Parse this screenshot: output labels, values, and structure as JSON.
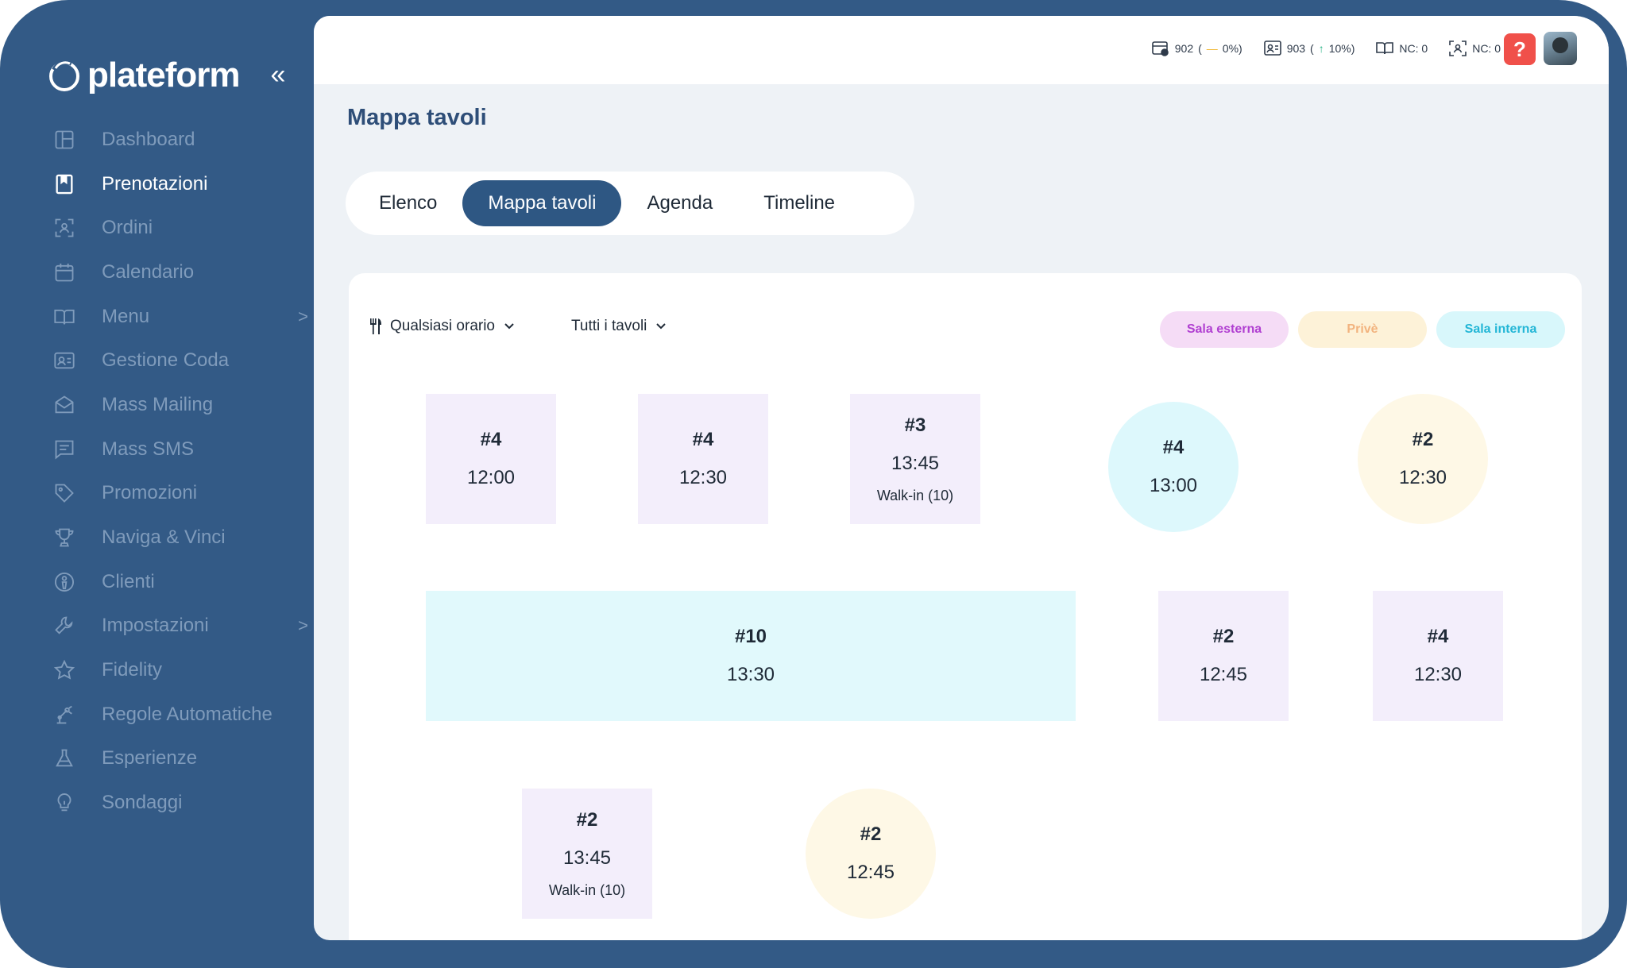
{
  "app": {
    "logo_text": "plateform"
  },
  "sidebar": {
    "items": [
      {
        "label": "Dashboard",
        "icon": "layout-icon",
        "active": false,
        "chevron": ""
      },
      {
        "label": "Prenotazioni",
        "icon": "bookmark-icon",
        "active": true,
        "chevron": ""
      },
      {
        "label": "Ordini",
        "icon": "scan-icon",
        "active": false,
        "chevron": ""
      },
      {
        "label": "Calendario",
        "icon": "calendar-icon",
        "active": false,
        "chevron": ""
      },
      {
        "label": "Menu",
        "icon": "book-open-icon",
        "active": false,
        "chevron": ">"
      },
      {
        "label": "Gestione Coda",
        "icon": "id-card-icon",
        "active": false,
        "chevron": ""
      },
      {
        "label": "Mass Mailing",
        "icon": "mail-icon",
        "active": false,
        "chevron": ""
      },
      {
        "label": "Mass SMS",
        "icon": "message-icon",
        "active": false,
        "chevron": ""
      },
      {
        "label": "Promozioni",
        "icon": "tag-icon",
        "active": false,
        "chevron": ""
      },
      {
        "label": "Naviga & Vinci",
        "icon": "trophy-icon",
        "active": false,
        "chevron": ""
      },
      {
        "label": "Clienti",
        "icon": "user-circle-icon",
        "active": false,
        "chevron": ""
      },
      {
        "label": "Impostazioni",
        "icon": "wrench-icon",
        "active": false,
        "chevron": ">"
      },
      {
        "label": "Fidelity",
        "icon": "star-icon",
        "active": false,
        "chevron": ""
      },
      {
        "label": "Regole Automatiche",
        "icon": "robot-arm-icon",
        "active": false,
        "chevron": ""
      },
      {
        "label": "Esperienze",
        "icon": "flask-icon",
        "active": false,
        "chevron": ""
      },
      {
        "label": "Sondaggi",
        "icon": "lightbulb-icon",
        "active": false,
        "chevron": ""
      }
    ]
  },
  "topbar": {
    "stats": [
      {
        "icon": "reservation-stat-icon",
        "value": "902",
        "open": " (",
        "delta": "—",
        "pct": "0%)",
        "delta_color": "#f0b429"
      },
      {
        "icon": "queue-stat-icon",
        "value": "903",
        "open": " (",
        "delta": "↑",
        "pct": "10%)",
        "delta_color": "#2fb58a"
      },
      {
        "icon": "menu-stat-icon",
        "value": "NC: 0",
        "open": "",
        "delta": "",
        "pct": "",
        "delta_color": ""
      },
      {
        "icon": "scan-stat-icon",
        "value": "NC: 0",
        "open": "",
        "delta": "",
        "pct": "",
        "delta_color": ""
      }
    ],
    "help_label": "?"
  },
  "page": {
    "title": "Mappa tavoli"
  },
  "tabs": [
    {
      "label": "Elenco",
      "active": false
    },
    {
      "label": "Mappa tavoli",
      "active": true
    },
    {
      "label": "Agenda",
      "active": false
    },
    {
      "label": "Timeline",
      "active": false
    }
  ],
  "filters": {
    "time": "Qualsiasi orario",
    "tables": "Tutti i tavoli"
  },
  "rooms": [
    {
      "label": "Sala esterna",
      "bg": "#f5dcf6",
      "fg": "#b03fd1"
    },
    {
      "label": "Privè",
      "bg": "#fdf2d8",
      "fg": "#f2b37e"
    },
    {
      "label": "Sala interna",
      "bg": "#d8f7fb",
      "fg": "#23b6d6"
    }
  ],
  "tables": [
    {
      "num": "#4",
      "time": "12:00",
      "sub": ""
    },
    {
      "num": "#4",
      "time": "12:30",
      "sub": ""
    },
    {
      "num": "#3",
      "time": "13:45",
      "sub": "Walk-in (10)"
    },
    {
      "num": "#4",
      "time": "13:00",
      "sub": ""
    },
    {
      "num": "#2",
      "time": "12:30",
      "sub": ""
    },
    {
      "num": "#10",
      "time": "13:30",
      "sub": ""
    },
    {
      "num": "#2",
      "time": "12:45",
      "sub": ""
    },
    {
      "num": "#4",
      "time": "12:30",
      "sub": ""
    },
    {
      "num": "#2",
      "time": "13:45",
      "sub": "Walk-in (10)"
    },
    {
      "num": "#2",
      "time": "12:45",
      "sub": ""
    }
  ],
  "colors": {
    "sidebar_bg": "#335a86",
    "accent": "#2e5783",
    "table_purple": "#f3eefb",
    "table_cyan": "#ddf8fc",
    "table_yellow": "#fef8e6"
  }
}
